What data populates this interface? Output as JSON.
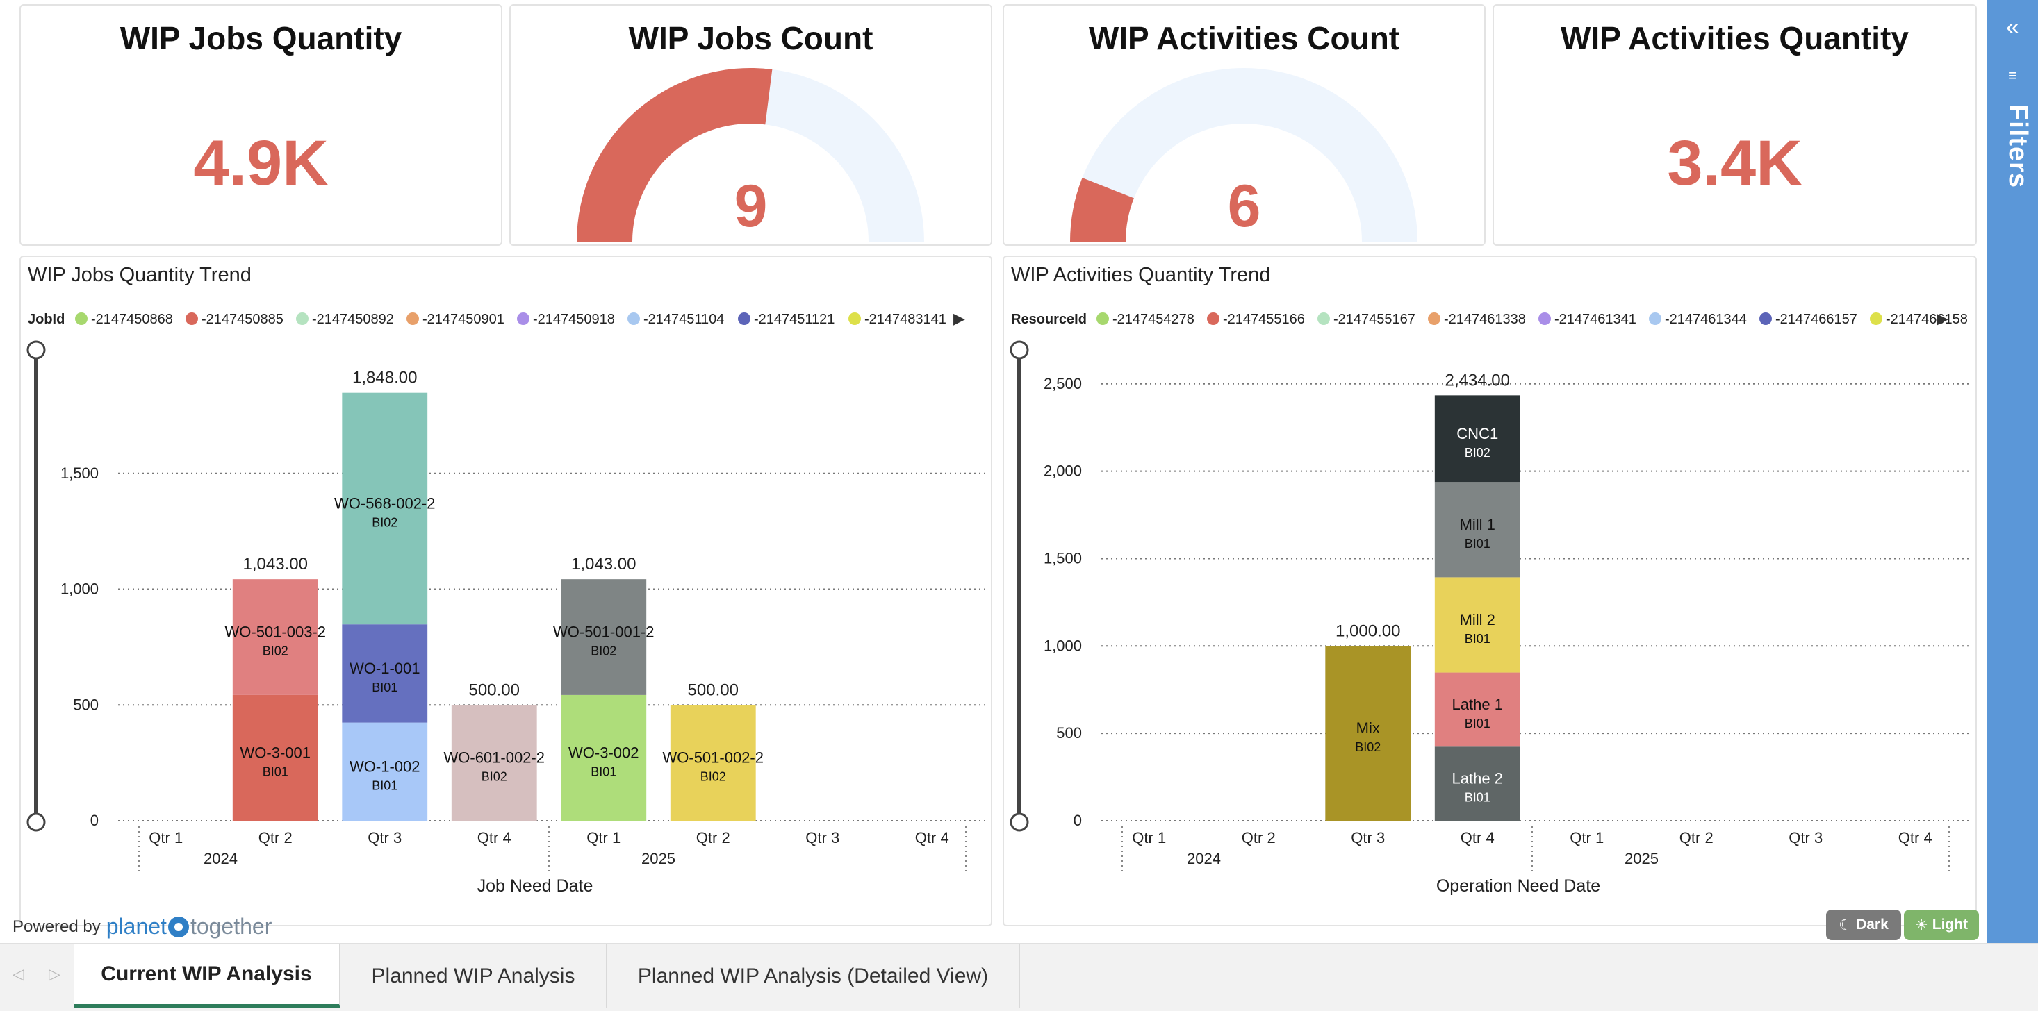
{
  "kpis": {
    "jobs_quantity": {
      "title": "WIP Jobs Quantity",
      "value": "4.9K"
    },
    "jobs_count": {
      "title": "WIP Jobs Count",
      "value": "9",
      "fill_fraction": 0.54
    },
    "activities_count": {
      "title": "WIP Activities Count",
      "value": "6",
      "fill_fraction": 0.12
    },
    "activities_quantity": {
      "title": "WIP Activities Quantity",
      "value": "3.4K"
    }
  },
  "charts": {
    "jobs": {
      "title": "WIP Jobs Quantity Trend",
      "legend_title": "JobId",
      "legend": [
        {
          "label": "-2147450868",
          "color": "#a7d86e"
        },
        {
          "label": "-2147450885",
          "color": "#d9685b"
        },
        {
          "label": "-2147450892",
          "color": "#b5e3c0"
        },
        {
          "label": "-2147450901",
          "color": "#e8a06a"
        },
        {
          "label": "-2147450918",
          "color": "#a98ee8"
        },
        {
          "label": "-2147451104",
          "color": "#a8c8f0"
        },
        {
          "label": "-2147451121",
          "color": "#5c64b8"
        },
        {
          "label": "-2147483141",
          "color": "#dde04a"
        }
      ],
      "xlabel": "Job Need Date"
    },
    "activities": {
      "title": "WIP Activities Quantity Trend",
      "legend_title": "ResourceId",
      "legend": [
        {
          "label": "-2147454278",
          "color": "#a7d86e"
        },
        {
          "label": "-2147455166",
          "color": "#d9685b"
        },
        {
          "label": "-2147455167",
          "color": "#b5e3c0"
        },
        {
          "label": "-2147461338",
          "color": "#e8a06a"
        },
        {
          "label": "-2147461341",
          "color": "#a98ee8"
        },
        {
          "label": "-2147461344",
          "color": "#a8c8f0"
        },
        {
          "label": "-2147466157",
          "color": "#5c64b8"
        },
        {
          "label": "-2147466158",
          "color": "#dde04a"
        }
      ],
      "xlabel": "Operation Need Date"
    }
  },
  "chart_data": [
    {
      "type": "bar",
      "stacked": true,
      "title": "WIP Jobs Quantity Trend",
      "xlabel": "Job Need Date",
      "ylabel": "",
      "ylim": [
        0,
        2000
      ],
      "yticks": [
        0,
        500,
        1000,
        1500
      ],
      "tick_labels": [
        "0",
        "500",
        "1,000",
        "1,500"
      ],
      "grid": true,
      "legend_position": "top",
      "categories": [
        "Qtr 1",
        "Qtr 2",
        "Qtr 3",
        "Qtr 4",
        "Qtr 1",
        "Qtr 2",
        "Qtr 3",
        "Qtr 4"
      ],
      "years": [
        {
          "label": "2024",
          "span": [
            0,
            3
          ]
        },
        {
          "label": "2025",
          "span": [
            4,
            7
          ]
        }
      ],
      "totals": [
        "",
        "1,043.00",
        "1,848.00",
        "500.00",
        "1,043.00",
        "500.00",
        "",
        ""
      ],
      "segments": [
        {
          "cat": 1,
          "value": 543,
          "name": "WO-3-001",
          "sub": "BI01",
          "color": "#d9685b"
        },
        {
          "cat": 1,
          "value": 500,
          "name": "WO-501-003-2",
          "sub": "BI02",
          "color": "#e08080"
        },
        {
          "cat": 2,
          "value": 424,
          "name": "WO-1-002",
          "sub": "BI01",
          "color": "#a8c8f8"
        },
        {
          "cat": 2,
          "value": 424,
          "name": "WO-1-001",
          "sub": "BI01",
          "color": "#6570bf"
        },
        {
          "cat": 2,
          "value": 1000,
          "name": "WO-568-002-2",
          "sub": "BI02",
          "color": "#85c5b8"
        },
        {
          "cat": 3,
          "value": 500,
          "name": "WO-601-002-2",
          "sub": "BI02",
          "color": "#d6bfbf"
        },
        {
          "cat": 4,
          "value": 543,
          "name": "WO-3-002",
          "sub": "BI01",
          "color": "#aedd7a"
        },
        {
          "cat": 4,
          "value": 500,
          "name": "WO-501-001-2",
          "sub": "BI02",
          "color": "#7f8585"
        },
        {
          "cat": 5,
          "value": 500,
          "name": "WO-501-002-2",
          "sub": "BI02",
          "color": "#e8d25a"
        }
      ]
    },
    {
      "type": "bar",
      "stacked": true,
      "title": "WIP Activities Quantity Trend",
      "xlabel": "Operation Need Date",
      "ylabel": "",
      "ylim": [
        0,
        2650
      ],
      "yticks": [
        0,
        500,
        1000,
        1500,
        2000,
        2500
      ],
      "tick_labels": [
        "0",
        "500",
        "1,000",
        "1,500",
        "2,000",
        "2,500"
      ],
      "grid": true,
      "legend_position": "top",
      "categories": [
        "Qtr 1",
        "Qtr 2",
        "Qtr 3",
        "Qtr 4",
        "Qtr 1",
        "Qtr 2",
        "Qtr 3",
        "Qtr 4"
      ],
      "years": [
        {
          "label": "2024",
          "span": [
            0,
            3
          ]
        },
        {
          "label": "2025",
          "span": [
            4,
            7
          ]
        }
      ],
      "totals": [
        "",
        "",
        "1,000.00",
        "2,434.00",
        "",
        "",
        "",
        ""
      ],
      "segments": [
        {
          "cat": 2,
          "value": 1000,
          "name": "Mix",
          "sub": "BI02",
          "color": "#a99426"
        },
        {
          "cat": 3,
          "value": 424,
          "name": "Lathe 2",
          "sub": "BI01",
          "color": "#5f6666"
        },
        {
          "cat": 3,
          "value": 424,
          "name": "Lathe 1",
          "sub": "BI01",
          "color": "#e08080"
        },
        {
          "cat": 3,
          "value": 545,
          "name": "Mill 2",
          "sub": "BI01",
          "color": "#e8d25a"
        },
        {
          "cat": 3,
          "value": 545,
          "name": "Mill 1",
          "sub": "BI01",
          "color": "#7f8585"
        },
        {
          "cat": 3,
          "value": 496,
          "name": "CNC1",
          "sub": "BI02",
          "color": "#2b3335"
        }
      ]
    }
  ],
  "sidebar": {
    "collapse_icon": "«",
    "filter_icon": "≡",
    "label": "Filters"
  },
  "footer": {
    "powered_by": "Powered by",
    "brand_part1": "planet",
    "brand_part2": "together",
    "dark_label": "Dark",
    "light_label": "Light",
    "dark_color": "#7a7a7a",
    "light_color": "#7fb56a"
  },
  "tabs": [
    {
      "label": "Current WIP Analysis",
      "active": true
    },
    {
      "label": "Planned WIP Analysis",
      "active": false
    },
    {
      "label": "Planned WIP Analysis (Detailed View)",
      "active": false
    }
  ],
  "nav": {
    "prev_icon": "◁",
    "next_icon": "▷"
  }
}
